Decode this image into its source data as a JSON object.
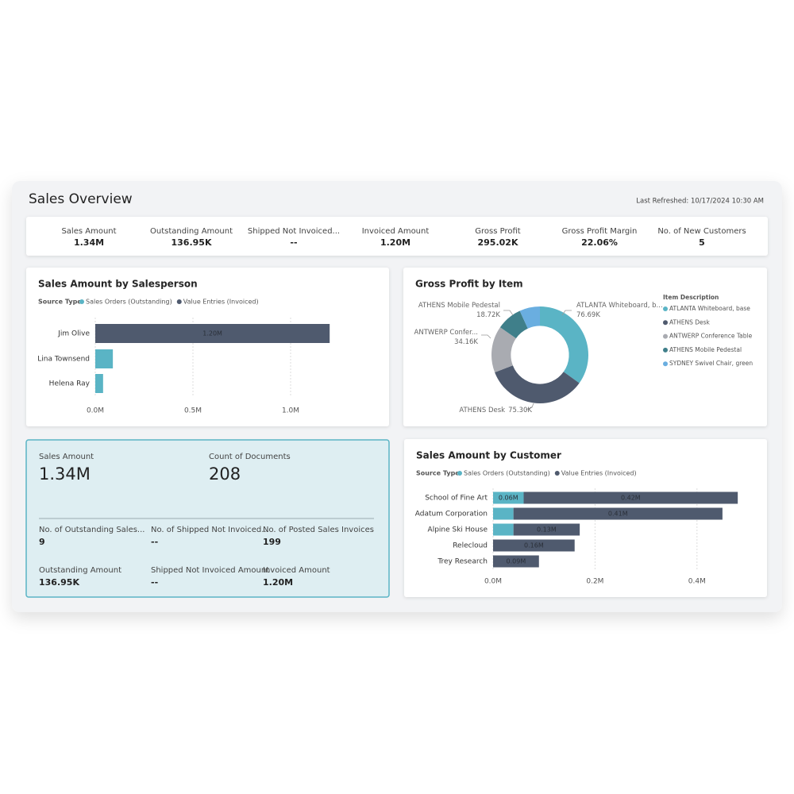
{
  "header": {
    "title": "Sales Overview",
    "refreshed": "Last Refreshed: 10/17/2024 10:30 AM"
  },
  "kpis": [
    {
      "label": "Sales Amount",
      "value": "1.34M"
    },
    {
      "label": "Outstanding Amount",
      "value": "136.95K"
    },
    {
      "label": "Shipped Not Invoiced...",
      "value": "--"
    },
    {
      "label": "Invoiced Amount",
      "value": "1.20M"
    },
    {
      "label": "Gross Profit",
      "value": "295.02K"
    },
    {
      "label": "Gross Profit Margin",
      "value": "22.06%"
    },
    {
      "label": "No. of New Customers",
      "value": "5"
    }
  ],
  "card": {
    "main": [
      {
        "label": "Sales Amount",
        "value": "1.34M"
      },
      {
        "label": "Count of Documents",
        "value": "208"
      }
    ],
    "details": [
      {
        "label": "No. of Outstanding Sales...",
        "value": "9"
      },
      {
        "label": "No. of Shipped Not Invoiced...",
        "value": "--"
      },
      {
        "label": "No. of Posted Sales Invoices",
        "value": "199"
      },
      {
        "label": "Outstanding Amount",
        "value": "136.95K"
      },
      {
        "label": "Shipped Not Invoiced Amount",
        "value": "--"
      },
      {
        "label": "Invoiced Amount",
        "value": "1.20M"
      }
    ]
  },
  "chart_data": [
    {
      "type": "bar",
      "horizontal": true,
      "stacked": true,
      "title": "Sales Amount by Salesperson",
      "legend_title": "Source Type",
      "categories": [
        "Jim Olive",
        "Lina Townsend",
        "Helena Ray"
      ],
      "series": [
        {
          "name": "Sales Orders (Outstanding)",
          "color": "#5ab4c5",
          "values": [
            0,
            0.09,
            0.04
          ]
        },
        {
          "name": "Value Entries (Invoiced)",
          "color": "#4f5a6e",
          "values": [
            1.2,
            0,
            0
          ],
          "value_labels": [
            "1.20M",
            null,
            null
          ]
        }
      ],
      "xlim": [
        0,
        1.4
      ],
      "xticks": [
        {
          "value": 0,
          "label": "0.0M"
        },
        {
          "value": 0.5,
          "label": "0.5M"
        },
        {
          "value": 1,
          "label": "1.0M"
        }
      ],
      "grid": true
    },
    {
      "type": "pie",
      "title": "Gross Profit by Item",
      "legend_title": "Item Description",
      "hole": 0.6,
      "categories": [
        "ATLANTA Whiteboard, base",
        "ATHENS Desk",
        "ANTWERP Conference Table",
        "ATHENS Mobile Pedestal",
        "SYDNEY Swivel Chair, green"
      ],
      "slice_labels": [
        "ATLANTA Whiteboard, b...",
        "ATHENS Desk",
        "ANTWERP Confer...",
        "ATHENS Mobile Pedestal",
        null
      ],
      "values": [
        76.69,
        75.3,
        34.16,
        18.72,
        15
      ],
      "value_labels": [
        "76.69K",
        "75.30K",
        "34.16K",
        "18.72K",
        null
      ],
      "colors": [
        "#5ab4c5",
        "#4f5a6e",
        "#a9abb1",
        "#3f7f8a",
        "#6aaee0"
      ]
    },
    {
      "type": "bar",
      "horizontal": true,
      "stacked": true,
      "title": "Sales Amount by Customer",
      "legend_title": "Source Type",
      "categories": [
        "School of Fine Art",
        "Adatum Corporation",
        "Alpine Ski House",
        "Relecloud",
        "Trey Research"
      ],
      "series": [
        {
          "name": "Sales Orders (Outstanding)",
          "color": "#5ab4c5",
          "values": [
            0.06,
            0.04,
            0.04,
            0,
            0
          ],
          "value_labels": [
            "0.06M",
            null,
            null,
            null,
            null
          ]
        },
        {
          "name": "Value Entries (Invoiced)",
          "color": "#4f5a6e",
          "values": [
            0.42,
            0.41,
            0.13,
            0.16,
            0.09
          ],
          "value_labels": [
            "0.42M",
            "0.41M",
            "0.13M",
            "0.16M",
            "0.09M"
          ]
        }
      ],
      "xlim": [
        0,
        0.5
      ],
      "xticks": [
        {
          "value": 0,
          "label": "0.0M"
        },
        {
          "value": 0.2,
          "label": "0.2M"
        },
        {
          "value": 0.4,
          "label": "0.4M"
        }
      ],
      "grid": true
    }
  ]
}
